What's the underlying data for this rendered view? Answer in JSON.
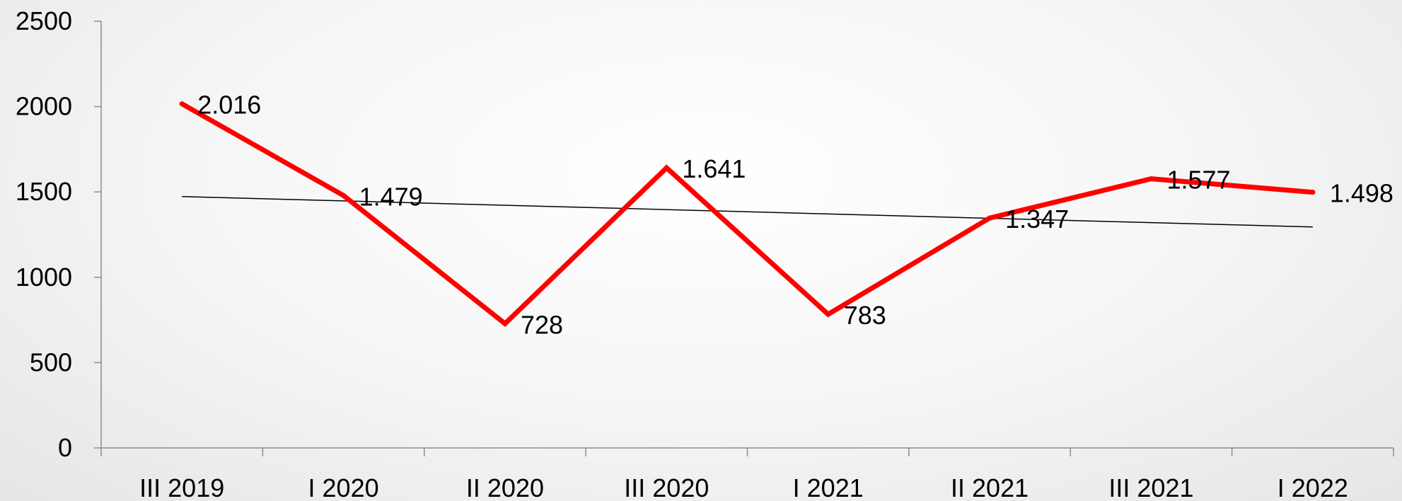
{
  "chart_data": {
    "type": "line",
    "categories": [
      "III 2019",
      "I 2020",
      "II 2020",
      "III 2020",
      "I 2021",
      "II 2021",
      "III 2021",
      "I 2022"
    ],
    "series": [
      {
        "values": [
          2016,
          1479,
          728,
          1641,
          783,
          1347,
          1577,
          1498
        ],
        "data_labels": [
          "2.016",
          "1.479",
          "728",
          "1.641",
          "783",
          "1.347",
          "1.577",
          "1.498"
        ],
        "color": "#ff0000"
      }
    ],
    "trendline": {
      "type": "linear",
      "color": "#000000"
    },
    "ylim": [
      0,
      2500
    ],
    "yticks": [
      "0",
      "500",
      "1000",
      "1500",
      "2000",
      "2500"
    ],
    "grid": false,
    "legend": "none",
    "title": "",
    "xlabel": "",
    "ylabel": ""
  }
}
